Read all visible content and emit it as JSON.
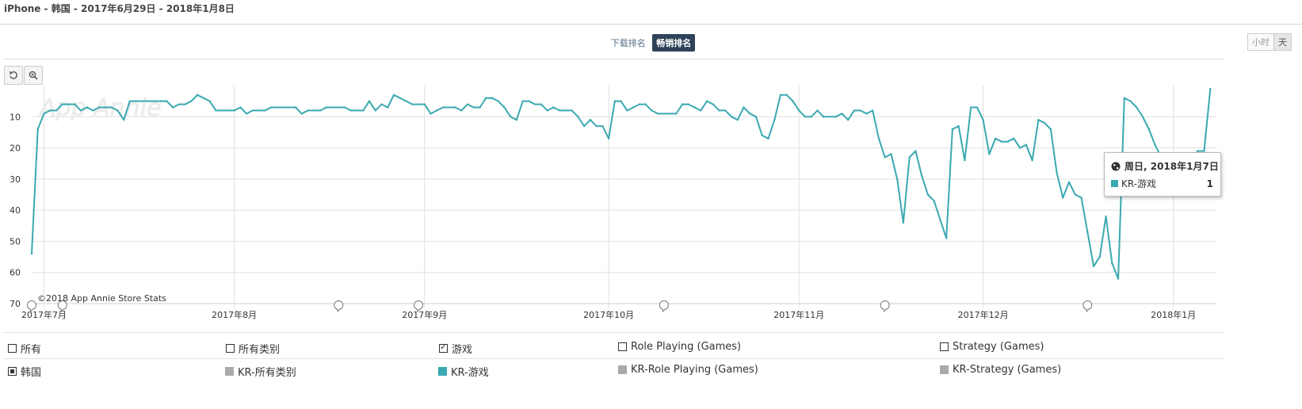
{
  "header": {
    "title": "iPhone - 韩国 - 2017年6月29日 - 2018年1月8日"
  },
  "tabs": {
    "download_label": "下载排名",
    "grossing_label": "畅销排名"
  },
  "granularity": {
    "hour_label": "小时",
    "day_label": "天"
  },
  "colors": {
    "series": "#3aa9b1",
    "grid": "#dddddd",
    "header": "#2e4259",
    "gray_swatch": "#aaaaaa"
  },
  "icons": {
    "reset": "reset-icon",
    "zoom": "zoom-in-icon",
    "globe": "globe-icon"
  },
  "chart_data": {
    "type": "line",
    "watermark": "App Annie",
    "credit": "©2018 App Annie Store Stats",
    "y_reversed": true,
    "ylim": [
      70,
      0
    ],
    "y_ticks": [
      10,
      20,
      30,
      40,
      50,
      60,
      70
    ],
    "x_ticks": [
      {
        "date": "2017-07-01",
        "label": "2017年7月"
      },
      {
        "date": "2017-08-01",
        "label": "2017年8月"
      },
      {
        "date": "2017-09-01",
        "label": "2017年9月"
      },
      {
        "date": "2017-10-01",
        "label": "2017年10月"
      },
      {
        "date": "2017-11-01",
        "label": "2017年11月"
      },
      {
        "date": "2017-12-01",
        "label": "2017年12月"
      },
      {
        "date": "2018-01-01",
        "label": "2018年1月"
      }
    ],
    "xlim": [
      "2017-06-29",
      "2018-01-08"
    ],
    "event_markers": [
      "2017-06-29",
      "2017-07-04",
      "2017-08-18",
      "2017-08-31",
      "2017-10-10",
      "2017-11-15",
      "2017-12-18"
    ],
    "series": [
      {
        "name": "KR-游戏",
        "color": "#3aa9b1",
        "points": [
          [
            "2017-06-29",
            54
          ],
          [
            "2017-06-30",
            14
          ],
          [
            "2017-07-01",
            9
          ],
          [
            "2017-07-02",
            8
          ],
          [
            "2017-07-03",
            8
          ],
          [
            "2017-07-04",
            6
          ],
          [
            "2017-07-05",
            6
          ],
          [
            "2017-07-06",
            6
          ],
          [
            "2017-07-07",
            8
          ],
          [
            "2017-07-08",
            7
          ],
          [
            "2017-07-09",
            8
          ],
          [
            "2017-07-10",
            7
          ],
          [
            "2017-07-11",
            7
          ],
          [
            "2017-07-12",
            7
          ],
          [
            "2017-07-13",
            8
          ],
          [
            "2017-07-14",
            11
          ],
          [
            "2017-07-15",
            5
          ],
          [
            "2017-07-16",
            5
          ],
          [
            "2017-07-20",
            5
          ],
          [
            "2017-07-21",
            5
          ],
          [
            "2017-07-22",
            7
          ],
          [
            "2017-07-23",
            6
          ],
          [
            "2017-07-24",
            6
          ],
          [
            "2017-07-25",
            5
          ],
          [
            "2017-07-26",
            3
          ],
          [
            "2017-07-27",
            4
          ],
          [
            "2017-07-28",
            5
          ],
          [
            "2017-07-29",
            8
          ],
          [
            "2017-07-30",
            8
          ],
          [
            "2017-08-01",
            8
          ],
          [
            "2017-08-02",
            7
          ],
          [
            "2017-08-03",
            9
          ],
          [
            "2017-08-04",
            8
          ],
          [
            "2017-08-06",
            8
          ],
          [
            "2017-08-07",
            7
          ],
          [
            "2017-08-11",
            7
          ],
          [
            "2017-08-12",
            9
          ],
          [
            "2017-08-13",
            8
          ],
          [
            "2017-08-15",
            8
          ],
          [
            "2017-08-16",
            7
          ],
          [
            "2017-08-19",
            7
          ],
          [
            "2017-08-20",
            8
          ],
          [
            "2017-08-22",
            8
          ],
          [
            "2017-08-23",
            5
          ],
          [
            "2017-08-24",
            8
          ],
          [
            "2017-08-25",
            6
          ],
          [
            "2017-08-26",
            7
          ],
          [
            "2017-08-27",
            3
          ],
          [
            "2017-08-28",
            4
          ],
          [
            "2017-08-29",
            5
          ],
          [
            "2017-08-30",
            6
          ],
          [
            "2017-09-01",
            6
          ],
          [
            "2017-09-02",
            9
          ],
          [
            "2017-09-03",
            8
          ],
          [
            "2017-09-04",
            7
          ],
          [
            "2017-09-06",
            7
          ],
          [
            "2017-09-07",
            8
          ],
          [
            "2017-09-08",
            6
          ],
          [
            "2017-09-09",
            7
          ],
          [
            "2017-09-10",
            7
          ],
          [
            "2017-09-11",
            4
          ],
          [
            "2017-09-12",
            4
          ],
          [
            "2017-09-13",
            5
          ],
          [
            "2017-09-14",
            7
          ],
          [
            "2017-09-15",
            10
          ],
          [
            "2017-09-16",
            11
          ],
          [
            "2017-09-17",
            5
          ],
          [
            "2017-09-18",
            5
          ],
          [
            "2017-09-19",
            6
          ],
          [
            "2017-09-20",
            6
          ],
          [
            "2017-09-21",
            8
          ],
          [
            "2017-09-22",
            7
          ],
          [
            "2017-09-23",
            8
          ],
          [
            "2017-09-25",
            8
          ],
          [
            "2017-09-26",
            10
          ],
          [
            "2017-09-27",
            13
          ],
          [
            "2017-09-28",
            11
          ],
          [
            "2017-09-29",
            13
          ],
          [
            "2017-09-30",
            13
          ],
          [
            "2017-10-01",
            17
          ],
          [
            "2017-10-02",
            5
          ],
          [
            "2017-10-03",
            5
          ],
          [
            "2017-10-04",
            8
          ],
          [
            "2017-10-05",
            7
          ],
          [
            "2017-10-06",
            6
          ],
          [
            "2017-10-07",
            6
          ],
          [
            "2017-10-08",
            8
          ],
          [
            "2017-10-09",
            9
          ],
          [
            "2017-10-12",
            9
          ],
          [
            "2017-10-13",
            6
          ],
          [
            "2017-10-14",
            6
          ],
          [
            "2017-10-15",
            7
          ],
          [
            "2017-10-16",
            8
          ],
          [
            "2017-10-17",
            5
          ],
          [
            "2017-10-18",
            6
          ],
          [
            "2017-10-19",
            8
          ],
          [
            "2017-10-20",
            8
          ],
          [
            "2017-10-21",
            10
          ],
          [
            "2017-10-22",
            11
          ],
          [
            "2017-10-23",
            7
          ],
          [
            "2017-10-24",
            9
          ],
          [
            "2017-10-25",
            10
          ],
          [
            "2017-10-26",
            16
          ],
          [
            "2017-10-27",
            17
          ],
          [
            "2017-10-28",
            11
          ],
          [
            "2017-10-29",
            3
          ],
          [
            "2017-10-30",
            3
          ],
          [
            "2017-10-31",
            5
          ],
          [
            "2017-11-01",
            8
          ],
          [
            "2017-11-02",
            10
          ],
          [
            "2017-11-03",
            10
          ],
          [
            "2017-11-04",
            8
          ],
          [
            "2017-11-05",
            10
          ],
          [
            "2017-11-07",
            10
          ],
          [
            "2017-11-08",
            9
          ],
          [
            "2017-11-09",
            11
          ],
          [
            "2017-11-10",
            8
          ],
          [
            "2017-11-11",
            8
          ],
          [
            "2017-11-12",
            9
          ],
          [
            "2017-11-13",
            8
          ],
          [
            "2017-11-14",
            17
          ],
          [
            "2017-11-15",
            23
          ],
          [
            "2017-11-16",
            22
          ],
          [
            "2017-11-17",
            30
          ],
          [
            "2017-11-18",
            44
          ],
          [
            "2017-11-19",
            23
          ],
          [
            "2017-11-20",
            21
          ],
          [
            "2017-11-21",
            29
          ],
          [
            "2017-11-22",
            35
          ],
          [
            "2017-11-23",
            37
          ],
          [
            "2017-11-24",
            43
          ],
          [
            "2017-11-25",
            49
          ],
          [
            "2017-11-26",
            14
          ],
          [
            "2017-11-27",
            13
          ],
          [
            "2017-11-28",
            24
          ],
          [
            "2017-11-29",
            7
          ],
          [
            "2017-11-30",
            7
          ],
          [
            "2017-12-01",
            11
          ],
          [
            "2017-12-02",
            22
          ],
          [
            "2017-12-03",
            17
          ],
          [
            "2017-12-04",
            18
          ],
          [
            "2017-12-05",
            18
          ],
          [
            "2017-12-06",
            17
          ],
          [
            "2017-12-07",
            20
          ],
          [
            "2017-12-08",
            19
          ],
          [
            "2017-12-09",
            24
          ],
          [
            "2017-12-10",
            11
          ],
          [
            "2017-12-11",
            12
          ],
          [
            "2017-12-12",
            14
          ],
          [
            "2017-12-13",
            28
          ],
          [
            "2017-12-14",
            36
          ],
          [
            "2017-12-15",
            31
          ],
          [
            "2017-12-16",
            35
          ],
          [
            "2017-12-17",
            36
          ],
          [
            "2017-12-18",
            47
          ],
          [
            "2017-12-19",
            58
          ],
          [
            "2017-12-20",
            55
          ],
          [
            "2017-12-21",
            42
          ],
          [
            "2017-12-22",
            57
          ],
          [
            "2017-12-23",
            62
          ],
          [
            "2017-12-24",
            4
          ],
          [
            "2017-12-25",
            5
          ],
          [
            "2017-12-26",
            7
          ],
          [
            "2017-12-27",
            10
          ],
          [
            "2017-12-28",
            14
          ],
          [
            "2017-12-29",
            19
          ],
          [
            "2017-12-30",
            23
          ],
          [
            "2017-12-31",
            27
          ],
          [
            "2018-01-01",
            30
          ],
          [
            "2018-01-02",
            28
          ],
          [
            "2018-01-03",
            24
          ],
          [
            "2018-01-04",
            23
          ],
          [
            "2018-01-05",
            21
          ],
          [
            "2018-01-06",
            21
          ],
          [
            "2018-01-07",
            1
          ]
        ]
      }
    ]
  },
  "tooltip": {
    "date": "周日, 2018年1月7日",
    "series": "KR-游戏",
    "value": "1"
  },
  "legend": {
    "row1": [
      {
        "label": "所有",
        "checked": false
      },
      {
        "label": "所有类别",
        "checked": false
      },
      {
        "label": "游戏",
        "checked": true
      },
      {
        "label": "Role Playing (Games)",
        "checked": false
      },
      {
        "label": "Strategy (Games)",
        "checked": false
      }
    ],
    "row2": [
      {
        "label": "韩国",
        "kind": "checkbox-filled"
      },
      {
        "label": "KR-所有类别",
        "color": "#aaaaaa"
      },
      {
        "label": "KR-游戏",
        "color": "#3aa9b1"
      },
      {
        "label": "KR-Role Playing (Games)",
        "color": "#aaaaaa"
      },
      {
        "label": "KR-Strategy (Games)",
        "color": "#aaaaaa"
      }
    ]
  }
}
